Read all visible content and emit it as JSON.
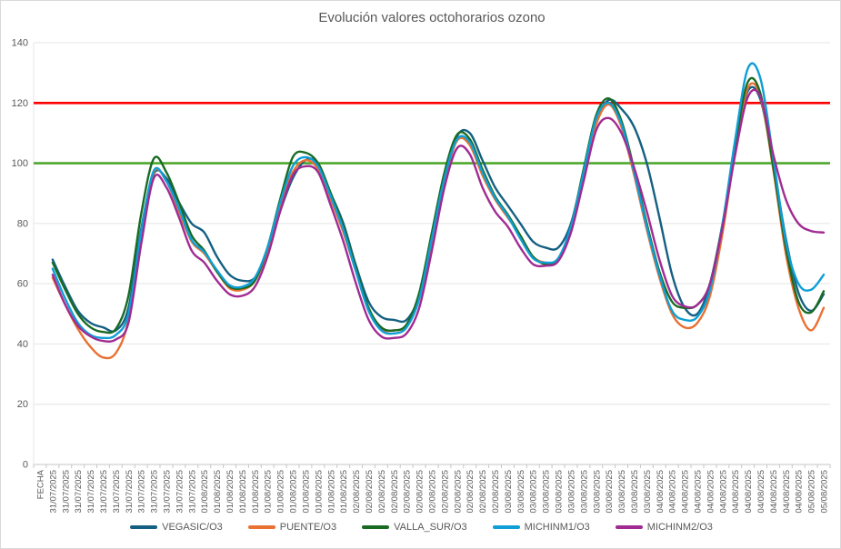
{
  "title": "Evolución valores octohorarios ozono",
  "colors": {
    "title_text": "#595959",
    "axis_text": "#595959",
    "gridline": "#e4e4e4",
    "axis_line": "#c6c6c6",
    "limit_red": "#ff0000",
    "limit_green": "#4ea72e"
  },
  "chart_data": {
    "type": "line",
    "title": "Evolución valores octohorarios ozono",
    "x_axis_title": "FECHA",
    "ylabel": "",
    "xlabel": "FECHA",
    "ylim": [
      0,
      140
    ],
    "y_ticks": [
      0,
      20,
      40,
      60,
      80,
      100,
      120,
      140
    ],
    "grid": true,
    "legend_position": "bottom",
    "reference_lines": [
      {
        "name": "limit-120",
        "value": 120,
        "color": "#ff0000"
      },
      {
        "name": "limit-100",
        "value": 100,
        "color": "#4ea72e"
      }
    ],
    "x_labels": [
      "31/07/2025",
      "31/07/2025",
      "31/07/2025",
      "31/07/2025",
      "31/07/2025",
      "31/07/2025",
      "31/07/2025",
      "31/07/2025",
      "31/07/2025",
      "31/07/2025",
      "31/07/2025",
      "31/07/2025",
      "01/08/2025",
      "01/08/2025",
      "01/08/2025",
      "01/08/2025",
      "01/08/2025",
      "01/08/2025",
      "01/08/2025",
      "01/08/2025",
      "01/08/2025",
      "01/08/2025",
      "01/08/2025",
      "01/08/2025",
      "02/08/2025",
      "02/08/2025",
      "02/08/2025",
      "02/08/2025",
      "02/08/2025",
      "02/08/2025",
      "02/08/2025",
      "02/08/2025",
      "02/08/2025",
      "02/08/2025",
      "02/08/2025",
      "02/08/2025",
      "03/08/2025",
      "03/08/2025",
      "03/08/2025",
      "03/08/2025",
      "03/08/2025",
      "03/08/2025",
      "03/08/2025",
      "03/08/2025",
      "03/08/2025",
      "03/08/2025",
      "03/08/2025",
      "03/08/2025",
      "04/08/2025",
      "04/08/2025",
      "04/08/2025",
      "04/08/2025",
      "04/08/2025",
      "04/08/2025",
      "04/08/2025",
      "04/08/2025",
      "04/08/2025",
      "04/08/2025",
      "04/08/2025",
      "04/08/2025",
      "05/08/2025",
      "05/08/2025"
    ],
    "series": [
      {
        "name": "VEGASIC/O3",
        "color": "#156082",
        "values": [
          68,
          59,
          51,
          47,
          45.5,
          44.5,
          52,
          78,
          96.5,
          95,
          87,
          80,
          77,
          69,
          63,
          61,
          62,
          70,
          84,
          95,
          101,
          100,
          90,
          80,
          66,
          54,
          49,
          48,
          48,
          56,
          74,
          94,
          109,
          110,
          101,
          92,
          86,
          80,
          74,
          72,
          72,
          80,
          97,
          114,
          121,
          118,
          112,
          100,
          82,
          63,
          52,
          50,
          60,
          80,
          105,
          124,
          121,
          100,
          75,
          57,
          51,
          56.5
        ]
      },
      {
        "name": "PUENTE/O3",
        "color": "#e97132",
        "values": [
          62,
          53,
          45,
          39,
          35.5,
          37,
          48,
          76,
          97,
          94,
          84,
          74,
          70,
          64,
          58.5,
          58,
          61,
          71,
          86,
          97,
          101,
          98,
          88,
          77,
          64,
          51,
          45,
          44.5,
          46,
          55,
          74,
          94,
          107.5,
          106,
          96,
          88,
          82,
          76,
          69,
          67,
          68,
          78,
          96,
          113,
          119.5,
          112,
          96,
          78,
          62,
          50,
          45.5,
          47,
          56,
          77,
          104,
          125,
          122,
          98,
          70,
          52,
          44.5,
          52
        ]
      },
      {
        "name": "VALLA_SUR/O3",
        "color": "#196b24",
        "values": [
          67,
          58,
          50,
          45.5,
          44,
          45,
          56,
          83,
          101.5,
          97,
          87,
          76,
          71,
          64,
          59,
          58.5,
          61,
          72,
          88,
          102,
          103.5,
          100,
          90,
          79,
          65,
          52,
          45.5,
          44.5,
          46.5,
          57,
          77,
          97,
          109.5,
          108,
          98,
          89,
          83,
          76,
          69,
          66.5,
          68,
          79,
          98,
          116,
          121.5,
          114,
          98,
          80,
          64,
          54,
          52,
          53,
          60,
          80,
          106,
          127,
          123,
          99,
          72,
          54,
          50.5,
          57.5
        ]
      },
      {
        "name": "MICHINM1/O3",
        "color": "#0f9ed5",
        "values": [
          65,
          55,
          47,
          43,
          42,
          43,
          50,
          77,
          97.5,
          94,
          85,
          74.5,
          70.5,
          64.5,
          59.5,
          59,
          62,
          72,
          87,
          99,
          102,
          99,
          89,
          78,
          64,
          51,
          44.5,
          43.5,
          45.5,
          55,
          75,
          95,
          108,
          107,
          97,
          88.5,
          82.5,
          75,
          68.5,
          67,
          68.5,
          79,
          97,
          115,
          120,
          113,
          97,
          79,
          63,
          51,
          48,
          49,
          58,
          80,
          108,
          131.5,
          128,
          102,
          74,
          60,
          58,
          63
        ]
      },
      {
        "name": "MICHINM2/O3",
        "color": "#a02b93",
        "values": [
          63,
          53,
          46,
          42.5,
          41,
          41.5,
          47,
          73,
          95,
          92,
          82,
          71,
          67,
          61,
          56.5,
          56,
          59,
          69,
          84,
          96,
          99,
          97,
          86,
          74,
          60,
          48,
          42.5,
          42,
          43.5,
          52,
          71,
          92,
          105,
          103,
          92,
          84,
          79,
          72,
          66.5,
          66,
          67.5,
          77,
          94,
          111,
          115,
          110,
          98.5,
          84,
          68,
          56,
          52.5,
          53,
          60,
          79,
          103,
          122,
          122,
          103,
          88,
          80,
          77.5,
          77
        ]
      }
    ]
  }
}
